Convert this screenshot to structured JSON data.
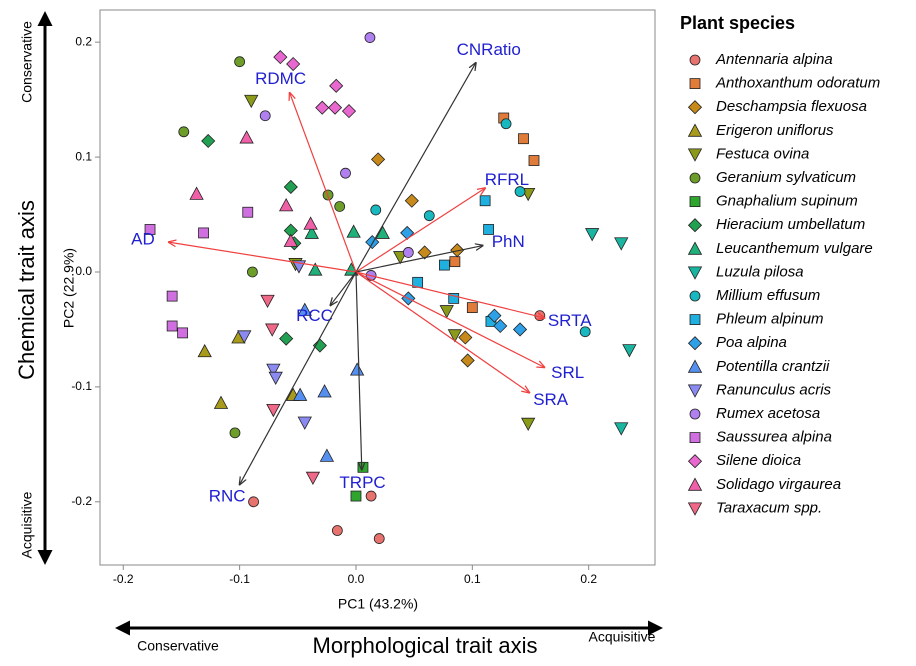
{
  "chart_data": {
    "type": "scatter",
    "xlabel": "PC1 (43.2%)",
    "ylabel": "PC2 (22.9%)",
    "xlim": [
      -0.22,
      0.257
    ],
    "ylim": [
      -0.255,
      0.228
    ],
    "xticks": [
      -0.2,
      -0.1,
      {
        "value": 0,
        "label": "0.0"
      },
      0.1,
      0.2
    ],
    "yticks": [
      -0.2,
      -0.1,
      {
        "value": 0,
        "label": "0.0"
      },
      0.1,
      0.2
    ],
    "legend_title": "Plant species",
    "legend_position": "right",
    "annotations": {
      "y_axis_name": "Chemical trait axis",
      "y_top": "Conservative",
      "y_bottom": "Acquisitive",
      "x_axis_name": "Morphological trait axis",
      "x_left": "Conservative",
      "x_right": "Acquisitive"
    },
    "vectors": [
      {
        "name": "CNRatio",
        "x": 0.103,
        "y": 0.182,
        "color": "#333333"
      },
      {
        "name": "RDMC",
        "x": -0.057,
        "y": 0.156,
        "color": "#f04040"
      },
      {
        "name": "RFRL",
        "x": 0.111,
        "y": 0.073,
        "color": "#f04040"
      },
      {
        "name": "AD",
        "x": -0.161,
        "y": 0.026,
        "color": "#f04040"
      },
      {
        "name": "PhN",
        "x": 0.109,
        "y": 0.023,
        "color": "#333333"
      },
      {
        "name": "RCC",
        "x": -0.022,
        "y": -0.029,
        "color": "#333333"
      },
      {
        "name": "SRTA",
        "x": 0.162,
        "y": -0.04,
        "color": "#f04040"
      },
      {
        "name": "SRL",
        "x": 0.162,
        "y": -0.083,
        "color": "#f04040"
      },
      {
        "name": "SRA",
        "x": 0.149,
        "y": -0.105,
        "color": "#f04040"
      },
      {
        "name": "TRPC",
        "x": 0.005,
        "y": -0.172,
        "color": "#333333"
      },
      {
        "name": "RNC",
        "x": -0.1,
        "y": -0.185,
        "color": "#333333"
      }
    ],
    "series": [
      {
        "name": "Antennaria alpina",
        "marker": "circle",
        "color": "#e8726d",
        "x": [
          0.158,
          -0.088,
          -0.016,
          0.02,
          0.013
        ],
        "y": [
          -0.038,
          -0.2,
          -0.225,
          -0.232,
          -0.195
        ]
      },
      {
        "name": "Anthoxanthum odoratum",
        "marker": "square",
        "color": "#e07b39",
        "x": [
          0.127,
          0.144,
          0.153,
          0.1,
          0.085
        ],
        "y": [
          0.134,
          0.116,
          0.097,
          -0.031,
          0.009
        ]
      },
      {
        "name": "Deschampsia flexuosa",
        "marker": "diamond",
        "color": "#c78a1a",
        "x": [
          0.019,
          0.048,
          0.059,
          0.087,
          0.096,
          0.094
        ],
        "y": [
          0.098,
          0.062,
          0.017,
          0.019,
          -0.077,
          -0.057
        ]
      },
      {
        "name": "Erigeron uniflorus",
        "marker": "triangle-up",
        "color": "#a89a1a",
        "x": [
          -0.13,
          -0.101,
          -0.116,
          -0.054
        ],
        "y": [
          -0.069,
          -0.057,
          -0.114,
          -0.107
        ]
      },
      {
        "name": "Festuca ovina",
        "marker": "triangle-down",
        "color": "#8c9a1a",
        "x": [
          -0.09,
          0.148,
          0.038,
          0.078,
          0.085,
          0.148,
          -0.052
        ],
        "y": [
          0.149,
          0.068,
          0.013,
          -0.034,
          -0.055,
          -0.132,
          0.007
        ]
      },
      {
        "name": "Geranium sylvaticum",
        "marker": "circle",
        "color": "#6e9e2a",
        "x": [
          -0.1,
          -0.148,
          -0.024,
          -0.014,
          -0.089,
          -0.104
        ],
        "y": [
          0.183,
          0.122,
          0.067,
          0.057,
          0.0,
          -0.14
        ]
      },
      {
        "name": "Gnaphalium supinum",
        "marker": "square",
        "color": "#2ea62e",
        "x": [
          0.0,
          0.006
        ],
        "y": [
          -0.195,
          -0.17
        ]
      },
      {
        "name": "Hieracium umbellatum",
        "marker": "diamond",
        "color": "#20a050",
        "x": [
          -0.127,
          -0.056,
          -0.056,
          -0.053,
          -0.06,
          -0.031
        ],
        "y": [
          0.114,
          0.074,
          0.036,
          0.025,
          -0.058,
          -0.064
        ]
      },
      {
        "name": "Leucanthemum vulgare",
        "marker": "triangle-up",
        "color": "#20b07a",
        "x": [
          -0.002,
          0.023,
          -0.035,
          -0.004,
          -0.038
        ],
        "y": [
          0.035,
          0.034,
          0.002,
          0.002,
          0.034
        ]
      },
      {
        "name": "Luzula pilosa",
        "marker": "triangle-down",
        "color": "#1ab5a0",
        "x": [
          0.203,
          0.228,
          0.235,
          0.228
        ],
        "y": [
          0.033,
          0.025,
          -0.068,
          -0.136
        ]
      },
      {
        "name": "Millium effusum",
        "marker": "circle",
        "color": "#18b8c0",
        "x": [
          0.129,
          0.141,
          0.063,
          0.017,
          0.197
        ],
        "y": [
          0.129,
          0.07,
          0.049,
          0.054,
          -0.052
        ]
      },
      {
        "name": "Phleum alpinum",
        "marker": "square",
        "color": "#20b0e0",
        "x": [
          0.111,
          0.114,
          0.076,
          0.053,
          0.084,
          0.116
        ],
        "y": [
          0.062,
          0.037,
          0.006,
          -0.009,
          -0.023,
          -0.043
        ]
      },
      {
        "name": "Poa alpina",
        "marker": "diamond",
        "color": "#2ea0e8",
        "x": [
          0.014,
          0.045,
          0.119,
          0.124,
          0.141,
          0.044
        ],
        "y": [
          0.026,
          -0.023,
          -0.038,
          -0.047,
          -0.05,
          0.034
        ]
      },
      {
        "name": "Potentilla crantzii",
        "marker": "triangle-up",
        "color": "#5590f0",
        "x": [
          -0.044,
          -0.048,
          -0.027,
          0.001,
          -0.025
        ],
        "y": [
          -0.033,
          -0.107,
          -0.104,
          -0.085,
          -0.16
        ]
      },
      {
        "name": "Ranunculus acris",
        "marker": "triangle-down",
        "color": "#8a8af0",
        "x": [
          -0.049,
          -0.096,
          -0.071,
          -0.069,
          -0.044
        ],
        "y": [
          0.005,
          -0.056,
          -0.085,
          -0.092,
          -0.131
        ]
      },
      {
        "name": "Rumex acetosa",
        "marker": "circle",
        "color": "#b080f0",
        "x": [
          0.012,
          -0.078,
          -0.009,
          0.013,
          0.045
        ],
        "y": [
          0.204,
          0.136,
          0.086,
          -0.003,
          0.017
        ]
      },
      {
        "name": "Saussurea alpina",
        "marker": "square",
        "color": "#d070e0",
        "x": [
          -0.177,
          -0.131,
          -0.093,
          -0.158,
          -0.158,
          -0.149
        ],
        "y": [
          0.037,
          0.034,
          0.052,
          -0.021,
          -0.047,
          -0.053
        ]
      },
      {
        "name": "Silene dioica",
        "marker": "diamond",
        "color": "#e868d0",
        "x": [
          -0.065,
          -0.054,
          -0.017,
          -0.029,
          -0.018,
          -0.006
        ],
        "y": [
          0.187,
          0.181,
          0.162,
          0.143,
          0.143,
          0.14
        ]
      },
      {
        "name": "Solidago virgaurea",
        "marker": "triangle-up",
        "color": "#f060a8",
        "x": [
          -0.094,
          -0.137,
          -0.06,
          -0.056,
          -0.039
        ],
        "y": [
          0.117,
          0.068,
          0.058,
          0.027,
          0.042
        ]
      },
      {
        "name": "Taraxacum spp.",
        "marker": "triangle-down",
        "color": "#f06888",
        "x": [
          -0.076,
          -0.072,
          -0.071,
          -0.037
        ],
        "y": [
          -0.025,
          -0.05,
          -0.12,
          -0.179
        ]
      }
    ]
  }
}
